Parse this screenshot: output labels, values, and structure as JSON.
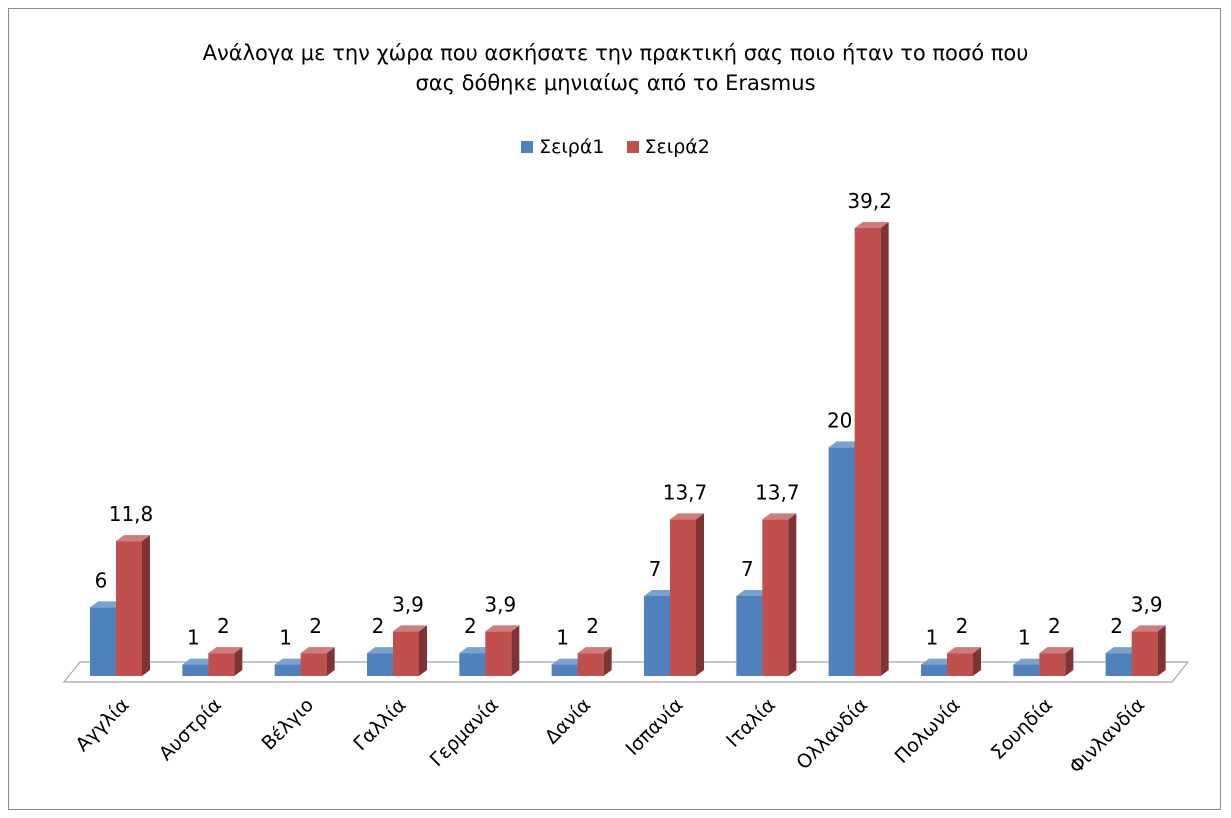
{
  "chart_data": {
    "type": "bar",
    "title_lines": [
      "Ανάλογα με την χώρα που ασκήσατε την πρακτική σας ποιο ήταν το ποσό που",
      "σας δόθηκε μηνιαίως από το Erasmus"
    ],
    "categories": [
      "Αγγλία",
      "Αυστρία",
      "Βέλγιο",
      "Γαλλία",
      "Γερμανία",
      "Δανία",
      "Ισπανία",
      "Ιταλία",
      "Ολλανδία",
      "Πολωνία",
      "Σουηδία",
      "Φινλανδία"
    ],
    "series": [
      {
        "name": "Σειρά1",
        "values": [
          6,
          1,
          1,
          2,
          2,
          1,
          7,
          7,
          20,
          1,
          1,
          2
        ],
        "labels": [
          "6",
          "1",
          "1",
          "2",
          "2",
          "1",
          "7",
          "7",
          "20",
          "1",
          "1",
          "2"
        ],
        "color": "#4f81bd"
      },
      {
        "name": "Σειρά2",
        "values": [
          11.8,
          2,
          2,
          3.9,
          3.9,
          2,
          13.7,
          13.7,
          39.2,
          2,
          2,
          3.9
        ],
        "labels": [
          "11,8",
          "2",
          "2",
          "3,9",
          "3,9",
          "2",
          "13,7",
          "13,7",
          "39,2",
          "2",
          "2",
          "3,9"
        ],
        "color": "#c0504d"
      }
    ],
    "ylim": [
      0,
      40
    ],
    "grid": false,
    "legend_position": "top",
    "style": "3d-clustered-column"
  }
}
